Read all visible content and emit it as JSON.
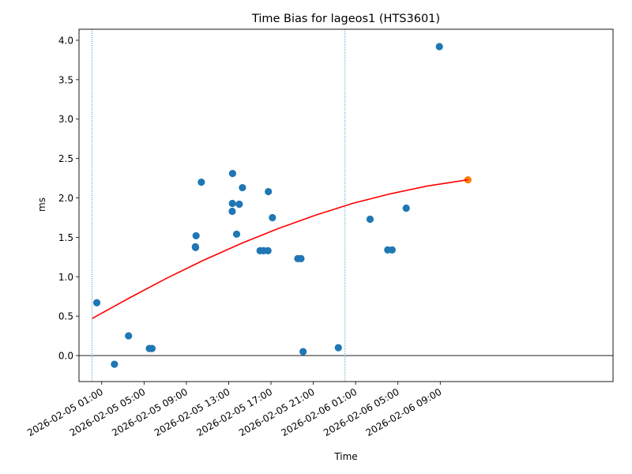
{
  "chart_data": {
    "type": "scatter",
    "title": "Time Bias for lageos1 (HTS3601)",
    "xlabel": "Time",
    "ylabel": "ms",
    "x_axis_type": "datetime",
    "xlim": [
      "2026-02-04T22:51",
      "2026-02-07T01:20"
    ],
    "ylim": [
      -0.33,
      4.14
    ],
    "x_ticks": [
      "2026-02-05T01:00",
      "2026-02-05T05:00",
      "2026-02-05T09:00",
      "2026-02-05T13:00",
      "2026-02-05T17:00",
      "2026-02-05T21:00",
      "2026-02-06T01:00",
      "2026-02-06T05:00",
      "2026-02-06T09:00"
    ],
    "x_tick_labels": [
      "2026-02-05 01:00",
      "2026-02-05 05:00",
      "2026-02-05 09:00",
      "2026-02-05 13:00",
      "2026-02-05 17:00",
      "2026-02-05 21:00",
      "2026-02-06 01:00",
      "2026-02-06 05:00",
      "2026-02-06 09:00"
    ],
    "y_ticks": [
      0.0,
      0.5,
      1.0,
      1.5,
      2.0,
      2.5,
      3.0,
      3.5,
      4.0
    ],
    "y_tick_labels": [
      "0.0",
      "0.5",
      "1.0",
      "1.5",
      "2.0",
      "2.5",
      "3.0",
      "3.5",
      "4.0"
    ],
    "grid": false,
    "horizontal_line": {
      "y": 0.0,
      "color": "#000000"
    },
    "vertical_lines": {
      "x": [
        "2026-02-05T00:05",
        "2026-02-06T00:00"
      ],
      "color": "#1f77b4",
      "style": "dotted"
    },
    "series": [
      {
        "type": "scatter",
        "color": "#1f77b4",
        "points": [
          {
            "x": "2026-02-05T00:32",
            "y": 0.67
          },
          {
            "x": "2026-02-05T02:12",
            "y": -0.11
          },
          {
            "x": "2026-02-05T03:32",
            "y": 0.25
          },
          {
            "x": "2026-02-05T05:30",
            "y": 0.09
          },
          {
            "x": "2026-02-05T05:45",
            "y": 0.09
          },
          {
            "x": "2026-02-05T09:51",
            "y": 1.38
          },
          {
            "x": "2026-02-05T09:52",
            "y": 1.37
          },
          {
            "x": "2026-02-05T09:55",
            "y": 1.52
          },
          {
            "x": "2026-02-05T10:25",
            "y": 2.2
          },
          {
            "x": "2026-02-05T13:20",
            "y": 1.83
          },
          {
            "x": "2026-02-05T13:21",
            "y": 1.93
          },
          {
            "x": "2026-02-05T13:22",
            "y": 2.31
          },
          {
            "x": "2026-02-05T13:45",
            "y": 1.54
          },
          {
            "x": "2026-02-05T14:00",
            "y": 1.92
          },
          {
            "x": "2026-02-05T14:18",
            "y": 2.13
          },
          {
            "x": "2026-02-05T15:58",
            "y": 1.33
          },
          {
            "x": "2026-02-05T16:18",
            "y": 1.33
          },
          {
            "x": "2026-02-05T16:43",
            "y": 1.33
          },
          {
            "x": "2026-02-05T16:45",
            "y": 2.08
          },
          {
            "x": "2026-02-05T17:08",
            "y": 1.75
          },
          {
            "x": "2026-02-05T19:32",
            "y": 1.23
          },
          {
            "x": "2026-02-05T19:50",
            "y": 1.23
          },
          {
            "x": "2026-02-05T20:02",
            "y": 0.05
          },
          {
            "x": "2026-02-05T23:22",
            "y": 0.1
          },
          {
            "x": "2026-02-06T02:22",
            "y": 1.73
          },
          {
            "x": "2026-02-06T04:02",
            "y": 1.34
          },
          {
            "x": "2026-02-06T04:27",
            "y": 1.34
          },
          {
            "x": "2026-02-06T05:47",
            "y": 1.87
          },
          {
            "x": "2026-02-06T08:55",
            "y": 3.92
          }
        ]
      },
      {
        "type": "scatter",
        "color": "#ff7f0e",
        "points": [
          {
            "x": "2026-02-06T11:37",
            "y": 2.23
          }
        ]
      },
      {
        "type": "line",
        "color": "#ff0000",
        "points": [
          {
            "x": "2026-02-05T00:05",
            "y": 0.47
          },
          {
            "x": "2026-02-05T03:36",
            "y": 0.73
          },
          {
            "x": "2026-02-05T07:07",
            "y": 0.98
          },
          {
            "x": "2026-02-05T10:38",
            "y": 1.21
          },
          {
            "x": "2026-02-05T14:09",
            "y": 1.42
          },
          {
            "x": "2026-02-05T17:40",
            "y": 1.61
          },
          {
            "x": "2026-02-05T21:11",
            "y": 1.78
          },
          {
            "x": "2026-02-06T00:42",
            "y": 1.93
          },
          {
            "x": "2026-02-06T04:13",
            "y": 2.05
          },
          {
            "x": "2026-02-06T07:44",
            "y": 2.15
          },
          {
            "x": "2026-02-06T11:37",
            "y": 2.23
          }
        ]
      }
    ]
  }
}
